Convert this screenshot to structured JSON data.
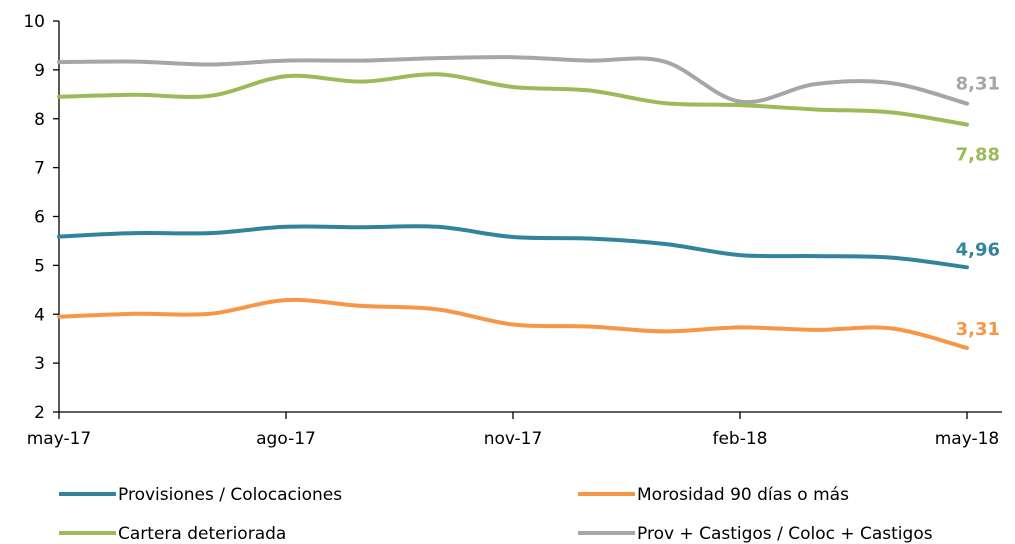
{
  "chart_data": {
    "type": "line",
    "title": "",
    "xlabel": "",
    "ylabel": "",
    "ylim": [
      2,
      10
    ],
    "y_ticks": [
      2,
      3,
      4,
      5,
      6,
      7,
      8,
      9,
      10
    ],
    "x": [
      "may-17",
      "jun-17",
      "jul-17",
      "ago-17",
      "sep-17",
      "oct-17",
      "nov-17",
      "dic-17",
      "ene-18",
      "feb-18",
      "mar-18",
      "abr-18",
      "may-18"
    ],
    "x_tick_labels": [
      "may-17",
      "ago-17",
      "nov-17",
      "feb-18",
      "may-18"
    ],
    "grid": false,
    "legend_position": "bottom",
    "series": [
      {
        "name": "Provisiones / Colocaciones",
        "color": "#31849B",
        "values": [
          5.59,
          5.66,
          5.66,
          5.79,
          5.78,
          5.79,
          5.58,
          5.55,
          5.44,
          5.21,
          5.19,
          5.16,
          4.96
        ],
        "end_label": "4,96"
      },
      {
        "name": "Morosidad 90 días o más",
        "color": "#F79646",
        "values": [
          3.95,
          4.01,
          4.01,
          4.29,
          4.17,
          4.1,
          3.79,
          3.75,
          3.65,
          3.73,
          3.68,
          3.71,
          3.31
        ],
        "end_label": "3,31"
      },
      {
        "name": "Cartera deteriorada",
        "color": "#9BBB59",
        "values": [
          8.45,
          8.49,
          8.47,
          8.87,
          8.76,
          8.91,
          8.65,
          8.58,
          8.32,
          8.28,
          8.19,
          8.13,
          7.88
        ],
        "end_label": "7,88"
      },
      {
        "name": "Prov + Castigos / Coloc + Castigos",
        "color": "#A6A6A6",
        "values": [
          9.16,
          9.17,
          9.11,
          9.19,
          9.19,
          9.24,
          9.26,
          9.19,
          9.17,
          8.35,
          8.71,
          8.73,
          8.31
        ],
        "end_label": "8,31"
      }
    ]
  }
}
